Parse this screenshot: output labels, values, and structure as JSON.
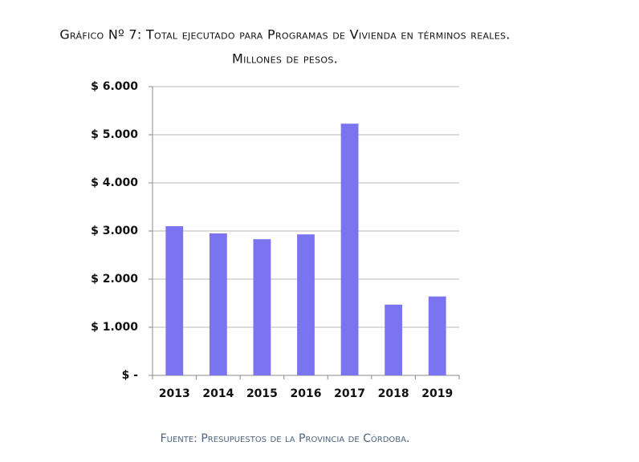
{
  "chart_data": {
    "type": "bar",
    "title": "Gráfico Nº 7: Total ejecutado para Programas de Vivienda en términos reales.",
    "subtitle": "Millones de pesos.",
    "source": "Fuente: Presupuestos de la Provincia de Córdoba.",
    "categories": [
      "2013",
      "2014",
      "2015",
      "2016",
      "2017",
      "2018",
      "2019"
    ],
    "values": [
      3100,
      2950,
      2830,
      2930,
      5230,
      1470,
      1640
    ],
    "color": "#7b74f0",
    "ylim": [
      0,
      6000
    ],
    "yticks": [
      {
        "value": 0,
        "label": "$ -"
      },
      {
        "value": 1000,
        "label": "$ 1.000"
      },
      {
        "value": 2000,
        "label": "$ 2.000"
      },
      {
        "value": 3000,
        "label": "$ 3.000"
      },
      {
        "value": 4000,
        "label": "$ 4.000"
      },
      {
        "value": 5000,
        "label": "$ 5.000"
      },
      {
        "value": 6000,
        "label": "$ 6.000"
      }
    ],
    "grid": true
  }
}
